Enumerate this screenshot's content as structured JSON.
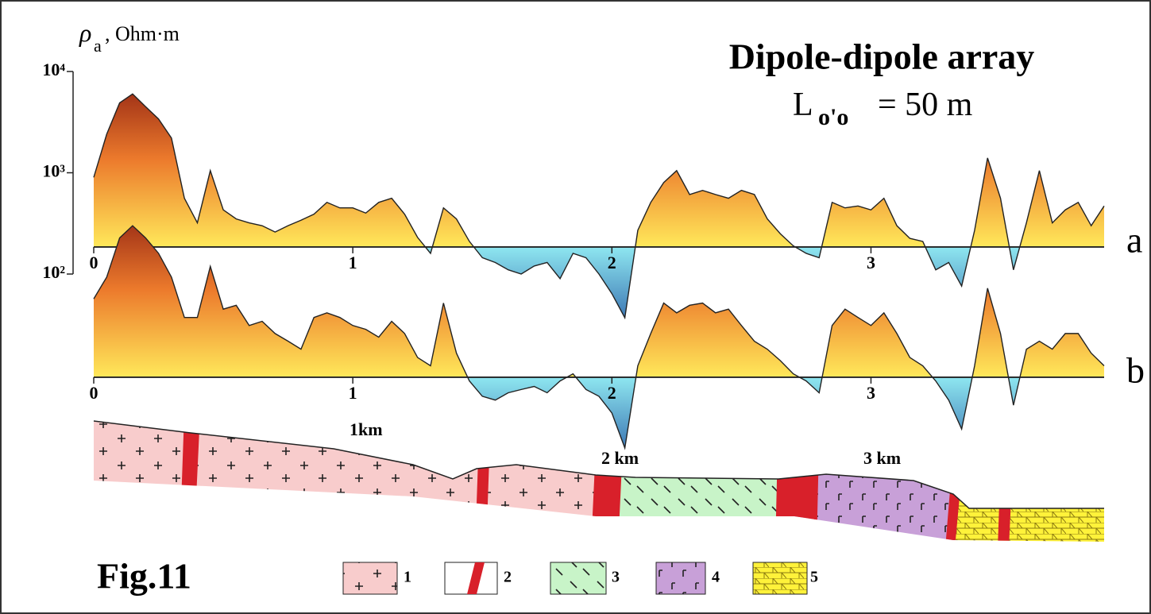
{
  "chart_data": {
    "type": "area-profile",
    "title": "Dipole-dipole array",
    "subtitle": {
      "symbol": "L",
      "subscript": "o'o",
      "text": "= 50 m"
    },
    "y_label": {
      "symbol": "ρ",
      "subscript": "a",
      "unit": ", Ohm·m"
    },
    "log_scale": true,
    "ylim": [
      100,
      10000
    ],
    "yticks": [
      {
        "value": 100,
        "label": "10²"
      },
      {
        "value": 1000,
        "label": "10³"
      },
      {
        "value": 10000,
        "label": "10⁴"
      }
    ],
    "xlim": [
      0,
      3.9
    ],
    "xticks": [
      0,
      1,
      2,
      3
    ],
    "baseline": 185,
    "colors": {
      "high": "#8a1c10",
      "mid": "#ec7a2c",
      "base": "#ffe85a",
      "low_base": "#8ee6f0",
      "low": "#1f4f9e"
    },
    "x": [
      0,
      0.05,
      0.1,
      0.15,
      0.2,
      0.25,
      0.3,
      0.35,
      0.4,
      0.45,
      0.5,
      0.55,
      0.6,
      0.65,
      0.7,
      0.75,
      0.8,
      0.85,
      0.9,
      0.95,
      1.0,
      1.05,
      1.1,
      1.15,
      1.2,
      1.25,
      1.3,
      1.35,
      1.4,
      1.45,
      1.5,
      1.55,
      1.6,
      1.65,
      1.7,
      1.75,
      1.8,
      1.85,
      1.9,
      1.95,
      2.0,
      2.05,
      2.1,
      2.15,
      2.2,
      2.25,
      2.3,
      2.35,
      2.4,
      2.45,
      2.5,
      2.55,
      2.6,
      2.65,
      2.7,
      2.75,
      2.8,
      2.85,
      2.9,
      2.95,
      3.0,
      3.05,
      3.1,
      3.15,
      3.2,
      3.25,
      3.3,
      3.35,
      3.4,
      3.45,
      3.5,
      3.55,
      3.6,
      3.65,
      3.7,
      3.75,
      3.8,
      3.85,
      3.9
    ],
    "series": [
      {
        "name": "a",
        "values": [
          900,
          2400,
          4900,
          6000,
          4500,
          3400,
          2200,
          560,
          320,
          1050,
          430,
          350,
          320,
          300,
          260,
          300,
          340,
          390,
          510,
          450,
          450,
          400,
          510,
          560,
          390,
          230,
          160,
          450,
          350,
          210,
          145,
          130,
          110,
          100,
          120,
          130,
          90,
          160,
          145,
          100,
          64,
          37,
          270,
          510,
          800,
          1050,
          610,
          670,
          610,
          560,
          670,
          610,
          350,
          250,
          190,
          160,
          145,
          510,
          450,
          470,
          430,
          560,
          300,
          225,
          210,
          110,
          130,
          76,
          270,
          1400,
          560,
          110,
          320,
          1050,
          320,
          430,
          510,
          300,
          470
        ]
      },
      {
        "name": "b",
        "values": [
          1100,
          1800,
          4400,
          5800,
          4400,
          3100,
          1800,
          720,
          720,
          2300,
          870,
          950,
          600,
          660,
          500,
          420,
          350,
          720,
          800,
          720,
          600,
          550,
          460,
          660,
          500,
          290,
          240,
          1000,
          320,
          170,
          120,
          110,
          130,
          140,
          150,
          130,
          170,
          200,
          140,
          120,
          82,
          37,
          240,
          500,
          1000,
          800,
          950,
          1000,
          800,
          870,
          600,
          420,
          350,
          270,
          200,
          170,
          130,
          600,
          870,
          720,
          600,
          800,
          500,
          290,
          240,
          170,
          110,
          57,
          240,
          1400,
          500,
          98,
          350,
          420,
          350,
          500,
          500,
          320,
          240
        ]
      }
    ]
  },
  "section": {
    "km_labels": [
      "1km",
      "2 km",
      "3 km"
    ],
    "legend": [
      "1",
      "2",
      "3",
      "4",
      "5"
    ],
    "figure_label": "Fig.11"
  }
}
